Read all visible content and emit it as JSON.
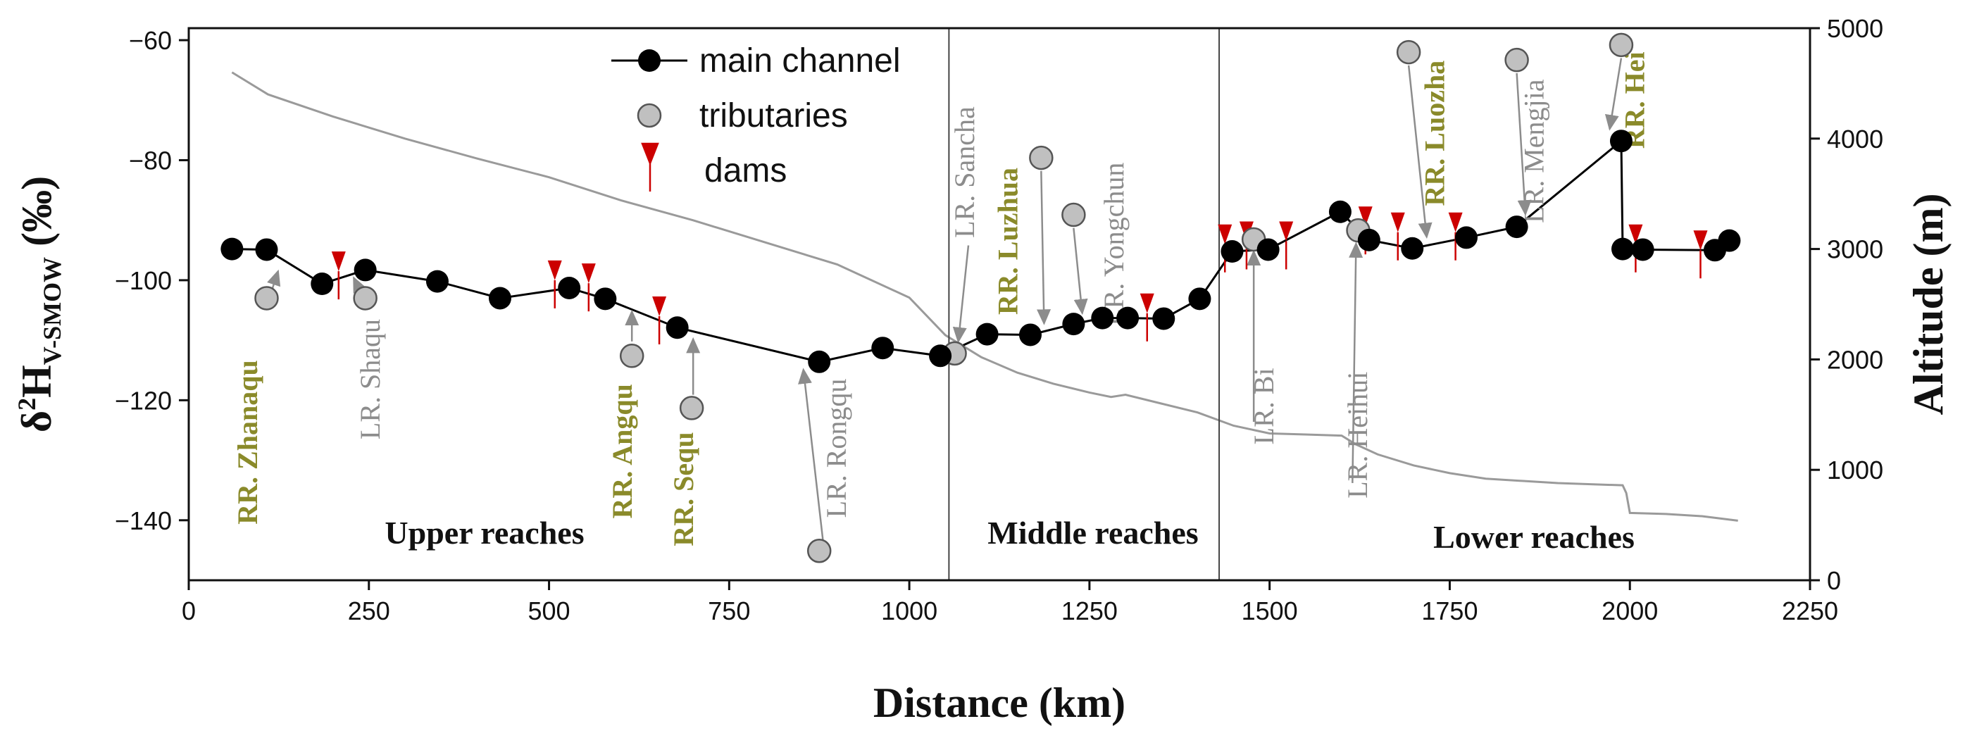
{
  "chart_data": {
    "type": "line",
    "x_axis": {
      "label": "Distance (km)",
      "range": [
        0,
        2250
      ],
      "ticks": [
        "0",
        "250",
        "500",
        "750",
        "1000",
        "1250",
        "1500",
        "1750",
        "2000",
        "2250"
      ]
    },
    "y_axis_left": {
      "label_main": "δ",
      "label_sup": "2",
      "label_rest": "H",
      "label_sub": "V-SMOW",
      "label_unit": " (‰)",
      "range": [
        -150,
        -58
      ],
      "ticks": [
        "−60",
        "−80",
        "−100",
        "−120",
        "−140"
      ]
    },
    "y_axis_right": {
      "label": "Altitude (m)",
      "range": [
        0,
        5000
      ],
      "ticks": [
        "5000",
        "4000",
        "3000",
        "2000",
        "1000",
        "0"
      ]
    },
    "legend": {
      "main_channel": "main channel",
      "tributaries": "tributaries",
      "dams": "dams"
    },
    "regions": {
      "upper": "Upper reaches",
      "middle": "Middle reaches",
      "lower": "Lower reaches"
    },
    "colors": {
      "main": "#000000",
      "tributary_fill": "#c0c0c0",
      "dam": "#cc0000",
      "altitude": "#9a9a9a",
      "gray_label": "#8c8c8c",
      "olive_label": "#8a8a2a"
    },
    "reach_dividers_km": [
      1055,
      1430
    ],
    "series": [
      {
        "name": "main channel",
        "points": [
          [
            60,
            -94.8
          ],
          [
            108,
            -94.9
          ],
          [
            185,
            -100.6
          ],
          [
            245,
            -98.3
          ],
          [
            345,
            -100.2
          ],
          [
            432,
            -103.0
          ],
          [
            528,
            -101.3
          ],
          [
            578,
            -103.1
          ],
          [
            678,
            -107.9
          ],
          [
            875,
            -113.6
          ],
          [
            963,
            -111.3
          ],
          [
            1043,
            -112.6
          ],
          [
            1108,
            -109.0
          ],
          [
            1168,
            -109.1
          ],
          [
            1228,
            -107.3
          ],
          [
            1268,
            -106.3
          ],
          [
            1303,
            -106.3
          ],
          [
            1353,
            -106.4
          ],
          [
            1403,
            -103.1
          ],
          [
            1448,
            -95.2
          ],
          [
            1498,
            -94.9
          ],
          [
            1598,
            -88.6
          ],
          [
            1638,
            -93.3
          ],
          [
            1698,
            -94.7
          ],
          [
            1773,
            -92.9
          ],
          [
            1843,
            -91.1
          ],
          [
            1988,
            -76.8
          ],
          [
            1990,
            -94.8
          ],
          [
            2018,
            -94.9
          ],
          [
            2118,
            -95.0
          ],
          [
            2138,
            -93.4
          ]
        ]
      },
      {
        "name": "tributaries",
        "points": [
          [
            108,
            -103.0
          ],
          [
            245,
            -103.0
          ],
          [
            615,
            -112.6
          ],
          [
            698,
            -121.3
          ],
          [
            875,
            -145.1
          ],
          [
            1063,
            -112.2
          ],
          [
            1183,
            -79.6
          ],
          [
            1228,
            -89.1
          ],
          [
            1478,
            -93.2
          ],
          [
            1623,
            -91.7
          ],
          [
            1693,
            -62.0
          ],
          [
            1843,
            -63.3
          ],
          [
            1988,
            -60.8
          ]
        ]
      },
      {
        "name": "dams",
        "points": [
          [
            208,
            -98.5
          ],
          [
            508,
            -100.0
          ],
          [
            555,
            -100.5
          ],
          [
            653,
            -106.0
          ],
          [
            1330,
            -105.5
          ],
          [
            1438,
            -94.0
          ],
          [
            1468,
            -93.5
          ],
          [
            1523,
            -93.5
          ],
          [
            1633,
            -91.0
          ],
          [
            1678,
            -92.0
          ],
          [
            1758,
            -92.0
          ],
          [
            2008,
            -94.0
          ],
          [
            2098,
            -95.0
          ]
        ]
      },
      {
        "name": "altitude",
        "points": [
          [
            60,
            4600
          ],
          [
            110,
            4400
          ],
          [
            200,
            4200
          ],
          [
            300,
            4000
          ],
          [
            400,
            3820
          ],
          [
            500,
            3650
          ],
          [
            600,
            3440
          ],
          [
            700,
            3260
          ],
          [
            800,
            3060
          ],
          [
            900,
            2860
          ],
          [
            1000,
            2560
          ],
          [
            1050,
            2220
          ],
          [
            1100,
            2020
          ],
          [
            1150,
            1880
          ],
          [
            1200,
            1780
          ],
          [
            1250,
            1700
          ],
          [
            1280,
            1660
          ],
          [
            1300,
            1680
          ],
          [
            1350,
            1600
          ],
          [
            1400,
            1520
          ],
          [
            1450,
            1400
          ],
          [
            1500,
            1330
          ],
          [
            1550,
            1320
          ],
          [
            1600,
            1310
          ],
          [
            1620,
            1230
          ],
          [
            1650,
            1140
          ],
          [
            1700,
            1040
          ],
          [
            1750,
            970
          ],
          [
            1800,
            920
          ],
          [
            1900,
            880
          ],
          [
            1990,
            860
          ],
          [
            1995,
            790
          ],
          [
            2000,
            610
          ],
          [
            2050,
            600
          ],
          [
            2100,
            580
          ],
          [
            2150,
            540
          ]
        ]
      }
    ],
    "annotations": [
      {
        "id": "zhanaqu",
        "text": "RR. Zhanaqu",
        "style": "olive",
        "x_km": 95,
        "y_val": -127.0,
        "arrow_from": [
          110,
          -103.6
        ],
        "arrow_to": [
          124,
          -98.5
        ]
      },
      {
        "id": "shaqu",
        "text": "LR. Shaqu",
        "style": "gray",
        "x_km": 265,
        "y_val": -116.5,
        "arrow_from": [
          247,
          -104.2
        ],
        "arrow_to": [
          229,
          -99.6
        ]
      },
      {
        "id": "angqu",
        "text": "RR. Angqu",
        "style": "olive",
        "x_km": 615,
        "y_val": -128.5,
        "arrow_from": [
          615,
          -110.2
        ],
        "arrow_to": [
          615,
          -105.2
        ]
      },
      {
        "id": "sequ",
        "text": "RR. Sequ",
        "style": "olive",
        "x_km": 700,
        "y_val": -134.8,
        "arrow_from": [
          700,
          -119.1
        ],
        "arrow_to": [
          700,
          -109.8
        ]
      },
      {
        "id": "rongqu",
        "text": "LR. Rongqu",
        "style": "gray",
        "x_km": 912,
        "y_val": -128.0,
        "arrow_from": [
          880,
          -143.2
        ],
        "arrow_to": [
          853,
          -114.9
        ]
      },
      {
        "id": "sancha",
        "text": "LR. Sancha",
        "style": "gray",
        "x_km": 1090,
        "y_val": -82.0,
        "arrow_from": [
          1082,
          -94.2
        ],
        "arrow_to": [
          1068,
          -110.2
        ]
      },
      {
        "id": "luzhua",
        "text": "RR. Luzhua",
        "style": "olive",
        "x_km": 1150,
        "y_val": -93.5,
        "arrow_from": [
          1183,
          -81.8
        ],
        "arrow_to": [
          1187,
          -107.2
        ]
      },
      {
        "id": "yongchun",
        "text": "LR. Yongchun",
        "style": "gray",
        "x_km": 1297,
        "y_val": -94.0,
        "arrow_from": [
          1228,
          -91.3
        ],
        "arrow_to": [
          1240,
          -105.5
        ]
      },
      {
        "id": "bi",
        "text": "LR. Bi",
        "style": "gray",
        "x_km": 1505,
        "y_val": -121.0,
        "arrow_from": [
          1478,
          -123.6
        ],
        "arrow_to": [
          1478,
          -95.2
        ]
      },
      {
        "id": "heihui",
        "text": "LR. Heihui",
        "style": "gray",
        "x_km": 1635,
        "y_val": -125.8,
        "arrow_from": [
          1615,
          -133.8
        ],
        "arrow_to": [
          1620,
          -93.9
        ]
      },
      {
        "id": "luozha",
        "text": "RR. Luozha",
        "style": "olive",
        "x_km": 1742,
        "y_val": -75.5,
        "arrow_from": [
          1693,
          -64.2
        ],
        "arrow_to": [
          1718,
          -92.8
        ]
      },
      {
        "id": "mengjia",
        "text": "LR. Mengjia",
        "style": "gray",
        "x_km": 1880,
        "y_val": -78.5,
        "arrow_from": [
          1843,
          -65.5
        ],
        "arrow_to": [
          1855,
          -89.0
        ]
      },
      {
        "id": "hei",
        "text": "RR. Hei",
        "style": "olive",
        "x_km": 2020,
        "y_val": -70.0,
        "arrow_from": [
          1988,
          -63.0
        ],
        "arrow_to": [
          1972,
          -74.8
        ]
      }
    ]
  }
}
